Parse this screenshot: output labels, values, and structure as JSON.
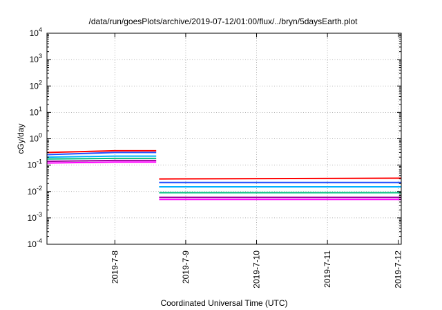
{
  "chart_data": {
    "type": "line",
    "title": "/data/run/goesPlots/archive/2019-07-12/01:00/flux/../bryn/5daysEarth.plot",
    "xlabel": "Coordinated Universal Time (UTC)",
    "ylabel": "cGy/day",
    "x_unit": "days",
    "xlim": [
      "2019-07-07 01:00",
      "2019-07-12 01:00"
    ],
    "ylog": true,
    "ylim": [
      0.0001,
      10000
    ],
    "grid": true,
    "y_ticks": [
      {
        "value": 0.0001,
        "base": "10",
        "exp": "-4"
      },
      {
        "value": 0.001,
        "base": "10",
        "exp": "-3"
      },
      {
        "value": 0.01,
        "base": "10",
        "exp": "-2"
      },
      {
        "value": 0.1,
        "base": "10",
        "exp": "-1"
      },
      {
        "value": 1,
        "base": "10",
        "exp": "0"
      },
      {
        "value": 10,
        "base": "10",
        "exp": "1"
      },
      {
        "value": 100,
        "base": "10",
        "exp": "2"
      },
      {
        "value": 1000,
        "base": "10",
        "exp": "3"
      },
      {
        "value": 10000,
        "base": "10",
        "exp": "4"
      }
    ],
    "x_ticks": [
      {
        "value": "2019-07-08 00:00",
        "label": "2019-7-8"
      },
      {
        "value": "2019-07-09 00:00",
        "label": "2019-7-9"
      },
      {
        "value": "2019-07-10 00:00",
        "label": "2019-7-10"
      },
      {
        "value": "2019-07-11 00:00",
        "label": "2019-7-11"
      },
      {
        "value": "2019-07-12 00:00",
        "label": "2019-7-12"
      }
    ],
    "series": [
      {
        "color": "#ff0000",
        "segments": [
          {
            "x": [
              "2019-07-07 01:00",
              "2019-07-08 00:00",
              "2019-07-08 14:00"
            ],
            "y": [
              0.3,
              0.35,
              0.35
            ]
          },
          {
            "x": [
              "2019-07-08 15:00",
              "2019-07-12 01:00"
            ],
            "y": [
              0.03,
              0.032
            ]
          }
        ]
      },
      {
        "color": "#1f4fff",
        "segments": [
          {
            "x": [
              "2019-07-07 01:00",
              "2019-07-08 00:00",
              "2019-07-08 14:00"
            ],
            "y": [
              0.25,
              0.3,
              0.3
            ]
          },
          {
            "x": [
              "2019-07-08 15:00",
              "2019-07-12 01:00"
            ],
            "y": [
              0.022,
              0.022
            ]
          }
        ]
      },
      {
        "color": "#00b0ff",
        "segments": [
          {
            "x": [
              "2019-07-07 01:00",
              "2019-07-08 00:00",
              "2019-07-08 14:00"
            ],
            "y": [
              0.2,
              0.22,
              0.22
            ]
          },
          {
            "x": [
              "2019-07-08 15:00",
              "2019-07-12 01:00"
            ],
            "y": [
              0.015,
              0.015
            ]
          }
        ]
      },
      {
        "color": "#00c080",
        "segments": [
          {
            "x": [
              "2019-07-07 01:00",
              "2019-07-08 00:00",
              "2019-07-08 14:00"
            ],
            "y": [
              0.17,
              0.18,
              0.18
            ]
          },
          {
            "x": [
              "2019-07-08 15:00",
              "2019-07-12 01:00"
            ],
            "y": [
              0.009,
              0.009
            ]
          }
        ]
      },
      {
        "color": "#a000a0",
        "segments": [
          {
            "x": [
              "2019-07-07 01:00",
              "2019-07-08 00:00",
              "2019-07-08 14:00"
            ],
            "y": [
              0.14,
              0.15,
              0.15
            ]
          },
          {
            "x": [
              "2019-07-08 15:00",
              "2019-07-12 01:00"
            ],
            "y": [
              0.006,
              0.006
            ]
          }
        ]
      },
      {
        "color": "#ff00ff",
        "segments": [
          {
            "x": [
              "2019-07-07 01:00",
              "2019-07-08 00:00",
              "2019-07-08 14:00"
            ],
            "y": [
              0.12,
              0.13,
              0.13
            ]
          },
          {
            "x": [
              "2019-07-08 15:00",
              "2019-07-12 01:00"
            ],
            "y": [
              0.005,
              0.005
            ]
          }
        ]
      }
    ]
  }
}
